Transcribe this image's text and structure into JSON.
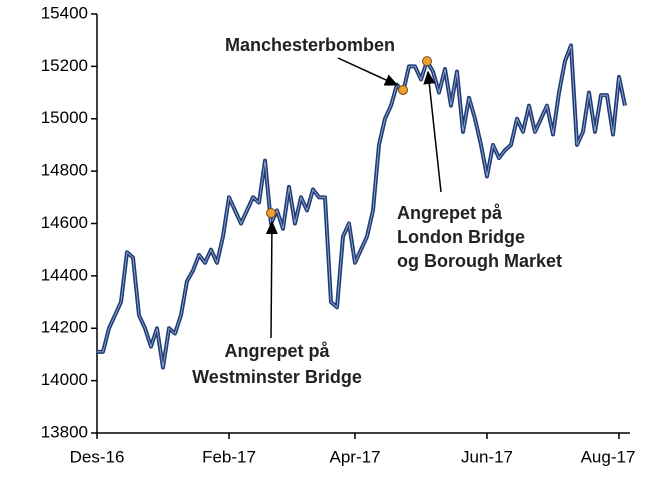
{
  "chart_data": {
    "type": "line",
    "categories": [
      "Des-16",
      null,
      null,
      null,
      null,
      null,
      null,
      null,
      null,
      null,
      null,
      null,
      null,
      null,
      null,
      null,
      null,
      null,
      null,
      null,
      null,
      null,
      "Feb-17",
      null,
      null,
      null,
      null,
      null,
      null,
      null,
      null,
      null,
      null,
      null,
      null,
      null,
      null,
      null,
      null,
      null,
      null,
      null,
      null,
      "Apr-17",
      null,
      null,
      null,
      null,
      null,
      null,
      null,
      null,
      null,
      null,
      null,
      null,
      null,
      null,
      null,
      null,
      null,
      null,
      null,
      null,
      null,
      "Jun-17",
      null,
      null,
      null,
      null,
      null,
      null,
      null,
      null,
      null,
      null,
      null,
      null,
      null,
      null,
      null,
      null,
      null,
      null,
      null,
      null,
      null,
      "Aug-17",
      null
    ],
    "series": [
      {
        "color": "#1f3d7a",
        "values": [
          14110,
          14110,
          14200,
          14250,
          14300,
          14490,
          14470,
          14250,
          14200,
          14130,
          14200,
          14050,
          14200,
          14180,
          14250,
          14380,
          14420,
          14480,
          14450,
          14500,
          14450,
          14550,
          14700,
          14650,
          14600,
          14650,
          14700,
          14680,
          14840,
          14600,
          14650,
          14580,
          14740,
          14600,
          14700,
          14650,
          14730,
          14700,
          14700,
          14300,
          14280,
          14550,
          14600,
          14450,
          14500,
          14550,
          14650,
          14900,
          15000,
          15050,
          15130,
          15100,
          15200,
          15200,
          15150,
          15220,
          15180,
          15100,
          15190,
          15050,
          15180,
          14950,
          15080,
          15000,
          14900,
          14780,
          14900,
          14850,
          14880,
          14900,
          15000,
          14950,
          15050,
          14950,
          15000,
          15050,
          14940,
          15100,
          15220,
          15280,
          14900,
          14950,
          15100,
          14950,
          15090,
          15090,
          14940,
          15160,
          15050
        ]
      }
    ],
    "ylim": [
      13800,
      15400
    ],
    "yticks": [
      13800,
      14000,
      14200,
      14400,
      14600,
      14800,
      15000,
      15200,
      15400
    ],
    "annotations": [
      {
        "lines": [
          "Angrepet på",
          "Westminster Bridge"
        ],
        "index": 29,
        "value": 14640,
        "color": "#f0a030"
      },
      {
        "lines": [
          "Manchesterbomben"
        ],
        "index": 51,
        "value": 15110,
        "color": "#f0a030"
      },
      {
        "lines": [
          "Angrepet på",
          "London Bridge",
          "og Borough Market"
        ],
        "index": 55,
        "value": 15220,
        "color": "#f0a030"
      }
    ]
  }
}
